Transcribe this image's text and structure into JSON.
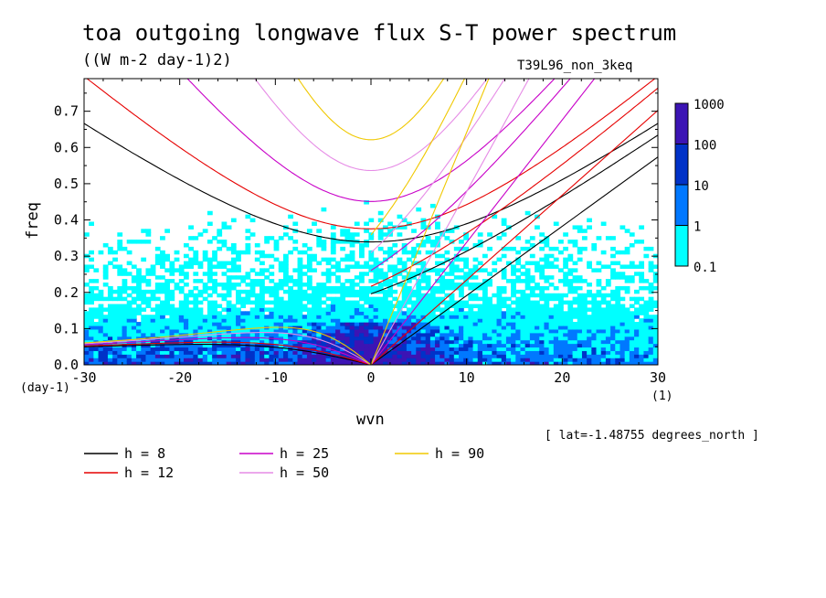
{
  "header": {
    "title": "toa outgoing longwave flux S-T power spectrum",
    "units": "((W m-2 day-1)2)",
    "run": "T39L96_non_3keq"
  },
  "footer": {
    "lat": "[ lat=-1.48755 degrees_north ]"
  },
  "colors": {
    "levels": [
      "#00ffff",
      "#0078ff",
      "#0032c8",
      "#3c14b4"
    ],
    "curves": {
      "8": "#000000",
      "12": "#e60000",
      "25": "#c800c8",
      "50": "#e68ce6",
      "90": "#f0c800"
    }
  },
  "chart_data": {
    "type": "heatmap",
    "title": "toa outgoing longwave flux S-T power spectrum",
    "subtitle": "((W m-2 day-1)2)",
    "xlabel": "wvn",
    "ylabel": "freq",
    "x_unit": "(1)",
    "y_unit": "(day-1)",
    "xlim": [
      -30,
      30
    ],
    "ylim": [
      0,
      0.79
    ],
    "x_ticks": [
      -30,
      -20,
      -10,
      0,
      10,
      20,
      30
    ],
    "y_ticks": [
      0.0,
      0.1,
      0.2,
      0.3,
      0.4,
      0.5,
      0.6,
      0.7
    ],
    "x_tick_labels": [
      "-30",
      "-20",
      "-10",
      "0",
      "10",
      "20",
      "30"
    ],
    "y_tick_labels": [
      "0.0",
      "0.1",
      "0.2",
      "0.3",
      "0.4",
      "0.5",
      "0.6",
      "0.7"
    ],
    "colorbar": {
      "labels": [
        "1000",
        "100",
        "10",
        "1",
        "0.1"
      ],
      "levels": [
        0.1,
        1,
        10,
        100,
        1000
      ]
    },
    "dispersion_curves": {
      "equivalent_depths_m": [
        8,
        12,
        25,
        50,
        90
      ],
      "legend": [
        {
          "label": "h =  8",
          "h": 8
        },
        {
          "label": "h = 12",
          "h": 12
        },
        {
          "label": "h = 25",
          "h": 25
        },
        {
          "label": "h = 50",
          "h": 50
        },
        {
          "label": "h = 90",
          "h": 90
        }
      ]
    },
    "approx_min_freq": {
      "n1_eig_h8": 0.335,
      "n1_eig_h12": 0.37,
      "n1_eig_h25": 0.44,
      "n1_eig_h50": 0.525,
      "n1_eig_h90": 0.61
    }
  }
}
